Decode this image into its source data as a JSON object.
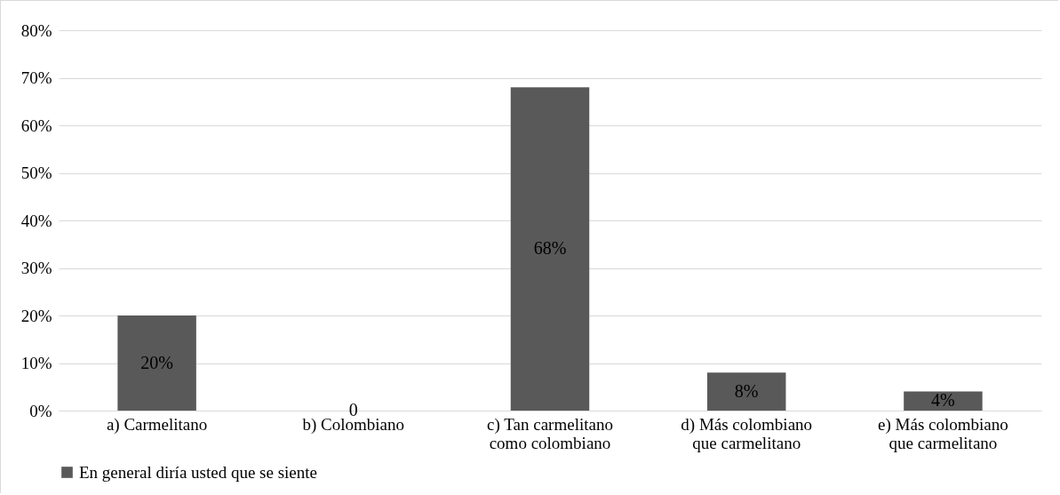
{
  "chart_data": {
    "type": "bar",
    "categories": [
      "a) Carmelitano",
      "b) Colombiano",
      "c) Tan carmelitano como colombiano",
      "d) Más colombiano que carmelitano",
      "e) Más colombiano que carmelitano"
    ],
    "series": [
      {
        "name": "En general diría usted que se siente",
        "color": "#595959",
        "values": [
          20,
          0,
          68,
          8,
          4
        ]
      }
    ],
    "value_labels": [
      "20%",
      "0",
      "68%",
      "8%",
      "4%"
    ],
    "ylim": [
      0,
      80
    ],
    "yticks": [
      {
        "value": 0,
        "label": "0%"
      },
      {
        "value": 10,
        "label": "10%"
      },
      {
        "value": 20,
        "label": "20%"
      },
      {
        "value": 30,
        "label": "30%"
      },
      {
        "value": 40,
        "label": "40%"
      },
      {
        "value": 50,
        "label": "50%"
      },
      {
        "value": 60,
        "label": "60%"
      },
      {
        "value": 70,
        "label": "70%"
      },
      {
        "value": 80,
        "label": "80%"
      }
    ],
    "grid": "y",
    "legend": "bottom"
  }
}
